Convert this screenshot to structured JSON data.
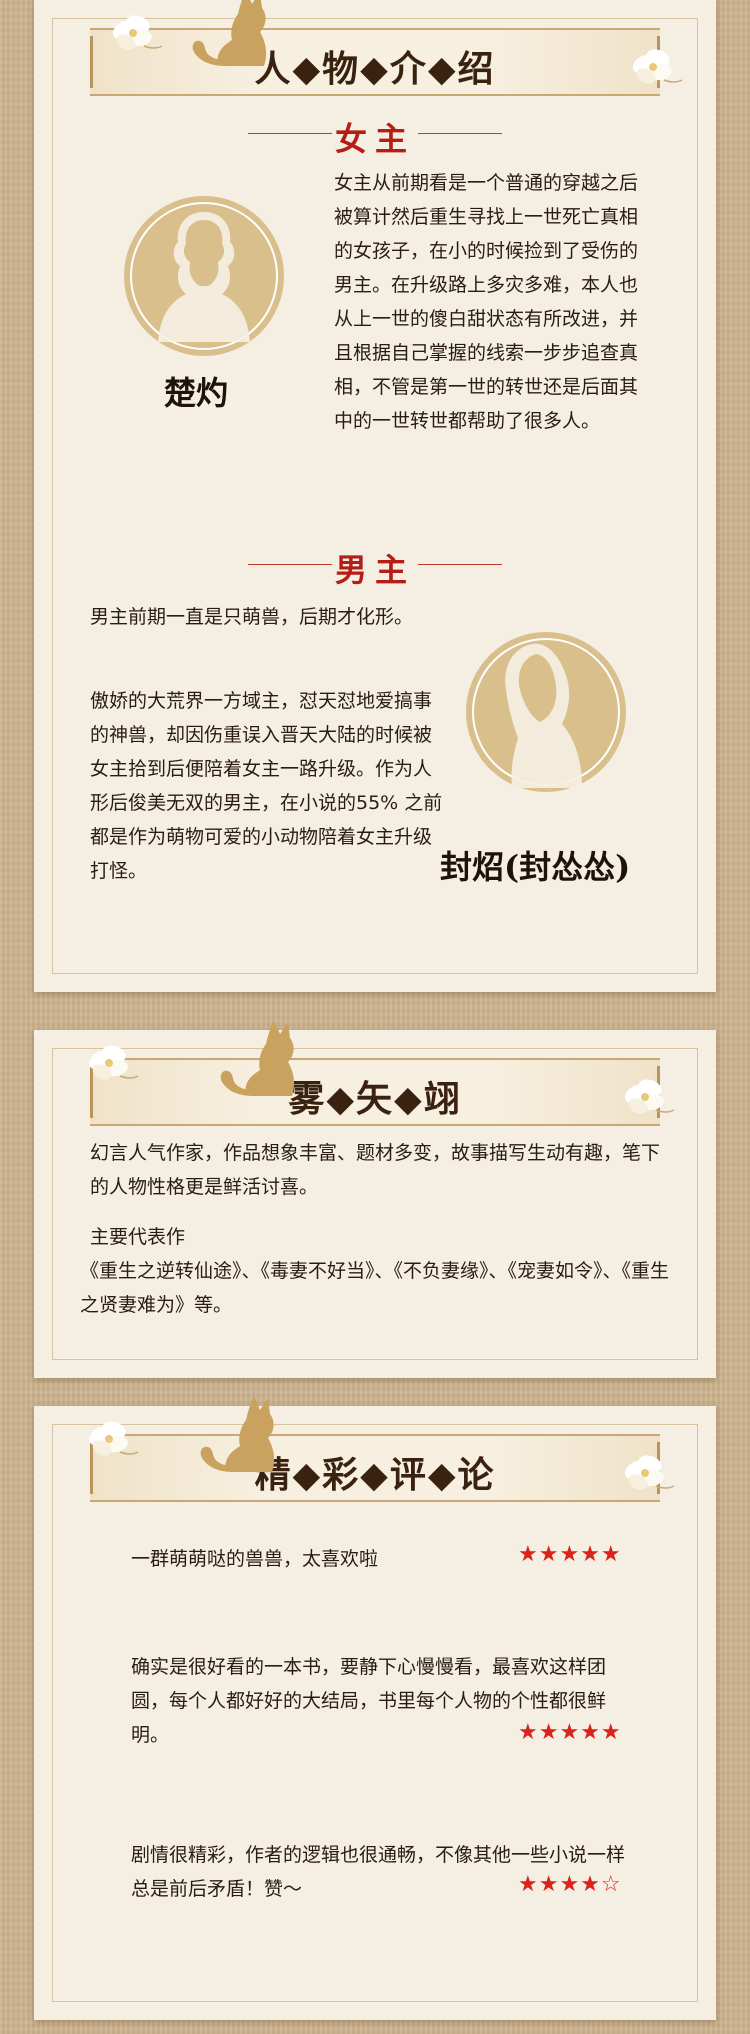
{
  "card1": {
    "banner_title": "人◆物◆介◆绍",
    "female_heading": "女主",
    "female_name": "楚灼",
    "female_text": "女主从前期看是一个普通的穿越之后被算计然后重生寻找上一世死亡真相的女孩子，在小的时候捡到了受伤的男主。在升级路上多灾多难，本人也从上一世的傻白甜状态有所改进，并且根据自己掌握的线索一步步追查真相，不管是第一世的转世还是后面其中的一世转世都帮助了很多人。",
    "male_heading": "男主",
    "male_name": "封炤(封怂怂)",
    "male_text_1": "男主前期一直是只萌兽，后期才化形。",
    "male_text_2": "傲娇的大荒界一方域主，怼天怼地爱搞事的神兽，却因伤重误入晋天大陆的时候被女主拾到后便陪着女主一路升级。作为人形后俊美无双的男主，在小说的55% 之前都是作为萌物可爱的小动物陪着女主升级打怪。"
  },
  "card2": {
    "banner_title": "雾◆矢◆翊",
    "text_1": "幻言人气作家，作品想象丰富、题材多变，故事描写生动有趣，笔下的人物性格更是鲜活讨喜。",
    "text_2_label": "主要代表作",
    "text_2": "《重生之逆转仙途》、《毒妻不好当》、《不负妻缘》、《宠妻如令》、《重生之贤妻难为》等。"
  },
  "card3": {
    "banner_title": "精◆彩◆评◆论",
    "reviews": [
      {
        "text": "一群萌萌哒的兽兽，太喜欢啦",
        "stars": "★★★★★"
      },
      {
        "text": "确实是很好看的一本书，要静下心慢慢看，最喜欢这样团圆，每个人都好好的大结局，书里每个人物的个性都很鲜明。",
        "stars": "★★★★★"
      },
      {
        "text": "剧情很精彩，作者的逻辑也很通畅，不像其他一些小说一样总是前后矛盾！赞～",
        "stars": "★★★★☆"
      }
    ]
  },
  "colors": {
    "accent_red": "#b51d16",
    "star_red": "#d9231b",
    "gold": "#d9bf8c",
    "card_bg": "#f5efe3"
  }
}
